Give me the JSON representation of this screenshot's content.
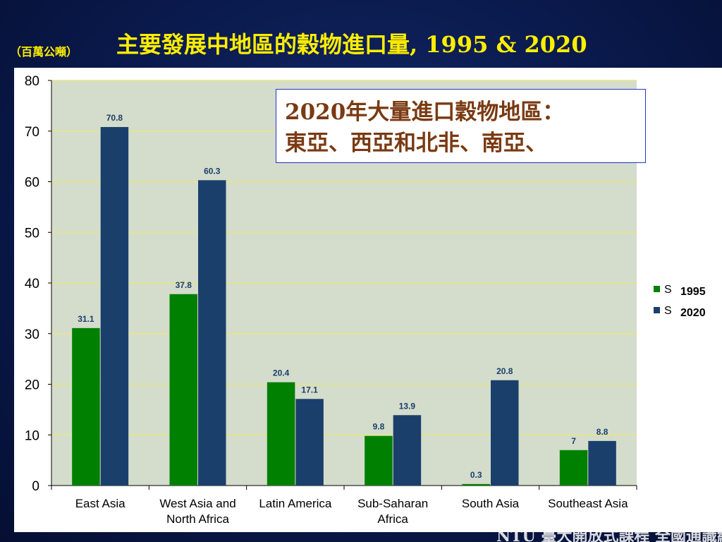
{
  "header": {
    "unit": "（百萬公噸）",
    "title": "主要發展中地區的穀物進口量, 1995  & 2020"
  },
  "callout": {
    "line1": "2020年大量進口穀物地區：",
    "line2": "東亞、西亞和北非、南亞、"
  },
  "footer": {
    "text": "NTU 臺大開放式課程  全國通識網"
  },
  "chart_data": {
    "type": "bar",
    "categories": [
      "East Asia",
      "West Asia and North Africa",
      "Latin America",
      "Sub-Saharan Africa",
      "South Asia",
      "Southeast Asia"
    ],
    "category_lines": [
      [
        "East Asia"
      ],
      [
        "West Asia and",
        "North Africa"
      ],
      [
        "Latin America"
      ],
      [
        "Sub-Saharan",
        "Africa"
      ],
      [
        "South Asia"
      ],
      [
        "Southeast Asia"
      ]
    ],
    "series": [
      {
        "name": "1995",
        "legend_marker": "S",
        "color": "#008000",
        "values": [
          31.1,
          37.8,
          20.4,
          9.8,
          0.3,
          7
        ]
      },
      {
        "name": "2020",
        "legend_marker": "S",
        "color": "#1a3f6b",
        "values": [
          70.8,
          60.3,
          17.1,
          13.9,
          20.8,
          8.8
        ]
      }
    ],
    "ylim": [
      0,
      80
    ],
    "yticks": [
      0,
      10,
      20,
      30,
      40,
      50,
      60,
      70,
      80
    ],
    "grid": true,
    "legend_position": "right",
    "plot_background": "#d4dccc",
    "gridline_color": "#e6e680"
  }
}
